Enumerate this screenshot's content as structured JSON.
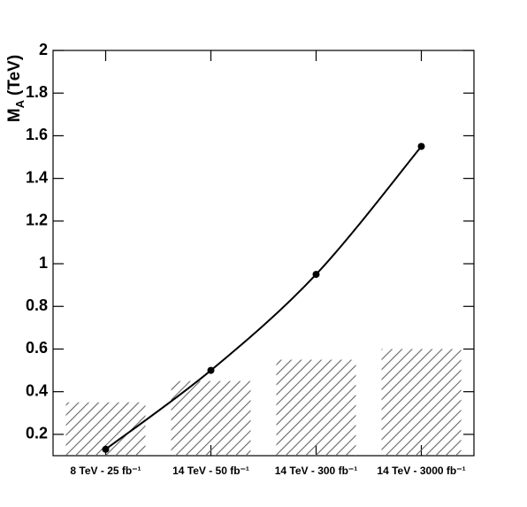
{
  "chart_data": {
    "type": "combo",
    "y_label": [
      "M",
      "A",
      "(TeV)"
    ],
    "categories": [
      "8 TeV - 25 fb⁻¹",
      "14 TeV - 50 fb⁻¹",
      "14 TeV - 300 fb⁻¹",
      "14 TeV - 3000 fb⁻¹"
    ],
    "series": [
      {
        "type": "bar",
        "color": "#666666",
        "values": [
          0.35,
          0.45,
          0.55,
          0.6
        ]
      },
      {
        "type": "line",
        "color": "#000000",
        "values": [
          0.13,
          0.5,
          0.95,
          1.55
        ]
      }
    ],
    "ylim": [
      0.1,
      2
    ],
    "yticks": [
      0.2,
      0.4,
      0.6,
      0.8,
      1,
      1.2,
      1.4,
      1.6,
      1.8,
      2
    ]
  }
}
